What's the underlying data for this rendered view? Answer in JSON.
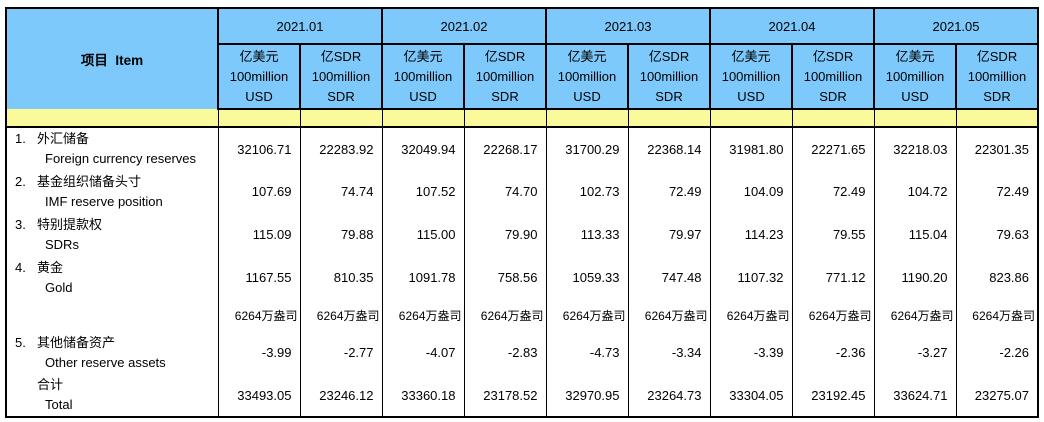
{
  "colors": {
    "header_blue": "#7EC9FB",
    "band_yellow": "#FAFA9B"
  },
  "table": {
    "item_header": "项目  Item",
    "months": [
      "2021.01",
      "2021.02",
      "2021.03",
      "2021.04",
      "2021.05"
    ],
    "unit_usd": {
      "line1": "亿美元",
      "line2": "100million",
      "line3": "USD"
    },
    "unit_sdr": {
      "line1": "亿SDR",
      "line2": "100million",
      "line3": "SDR"
    },
    "rows": [
      {
        "no": "1.",
        "cn": "外汇储备",
        "en": "Foreign currency reserves",
        "values": [
          "32106.71",
          "22283.92",
          "32049.94",
          "22268.17",
          "31700.29",
          "22368.14",
          "31981.80",
          "22271.65",
          "32218.03",
          "22301.35"
        ]
      },
      {
        "no": "2.",
        "cn": "基金组织储备头寸",
        "en": "IMF reserve position",
        "values": [
          "107.69",
          "74.74",
          "107.52",
          "74.70",
          "102.73",
          "72.49",
          "104.09",
          "72.49",
          "104.72",
          "72.49"
        ]
      },
      {
        "no": "3.",
        "cn": "特别提款权",
        "en": "SDRs",
        "values": [
          "115.09",
          "79.88",
          "115.00",
          "79.90",
          "113.33",
          "79.97",
          "114.23",
          "79.55",
          "115.04",
          "79.63"
        ]
      },
      {
        "no": "4.",
        "cn": "黄金",
        "en": "Gold",
        "values": [
          "1167.55",
          "810.35",
          "1091.78",
          "758.56",
          "1059.33",
          "747.48",
          "1107.32",
          "771.12",
          "1190.20",
          "823.86"
        ]
      },
      {
        "no": "",
        "cn": "",
        "en": "",
        "values": [
          "6264万盎司",
          "6264万盎司",
          "6264万盎司",
          "6264万盎司",
          "6264万盎司",
          "6264万盎司",
          "6264万盎司",
          "6264万盎司",
          "6264万盎司",
          "6264万盎司"
        ]
      },
      {
        "no": "5.",
        "cn": "其他储备资产",
        "en": "Other reserve assets",
        "values": [
          "-3.99",
          "-2.77",
          "-4.07",
          "-2.83",
          "-4.73",
          "-3.34",
          "-3.39",
          "-2.36",
          "-3.27",
          "-2.26"
        ]
      },
      {
        "no": "",
        "cn": "合计",
        "en": "Total",
        "values": [
          "33493.05",
          "23246.12",
          "33360.18",
          "23178.52",
          "32970.95",
          "23264.73",
          "33304.05",
          "23192.45",
          "33624.71",
          "23275.07"
        ]
      }
    ]
  }
}
